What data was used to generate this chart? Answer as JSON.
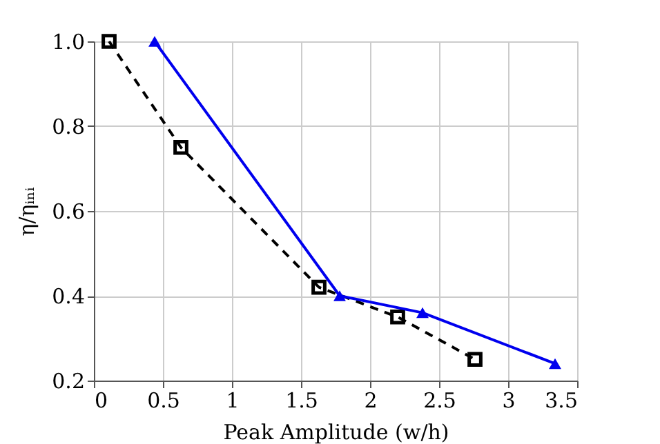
{
  "chart_data": {
    "type": "line",
    "xlabel": "Peak Amplitude (w/h)",
    "ylabel": "η/ηᵢₙᵢ",
    "xlim": [
      0,
      3.5
    ],
    "ylim": [
      0.2,
      1.0
    ],
    "xticks": [
      0,
      0.5,
      1,
      1.5,
      2,
      2.5,
      3,
      3.5
    ],
    "yticks": [
      {
        "value": 0.2,
        "label": "0.2"
      },
      {
        "value": 0.4,
        "label": "0.4"
      },
      {
        "value": 0.6,
        "label": "0.6"
      },
      {
        "value": 0.8,
        "label": "0.8"
      },
      {
        "value": 1.0,
        "label": "1.0"
      }
    ],
    "grid": true,
    "legend": false,
    "series": [
      {
        "color": "#000000",
        "x": [
          0.11,
          0.63,
          1.63,
          2.2,
          2.76
        ],
        "values": [
          1.0,
          0.75,
          0.42,
          0.35,
          0.25
        ],
        "marker": "square",
        "line_style": "dashed"
      },
      {
        "color": "#0000ee",
        "x": [
          0.44,
          1.78,
          2.38,
          3.34
        ],
        "values": [
          1.0,
          0.4,
          0.36,
          0.24
        ],
        "marker": "triangle",
        "line_style": "solid"
      }
    ]
  }
}
